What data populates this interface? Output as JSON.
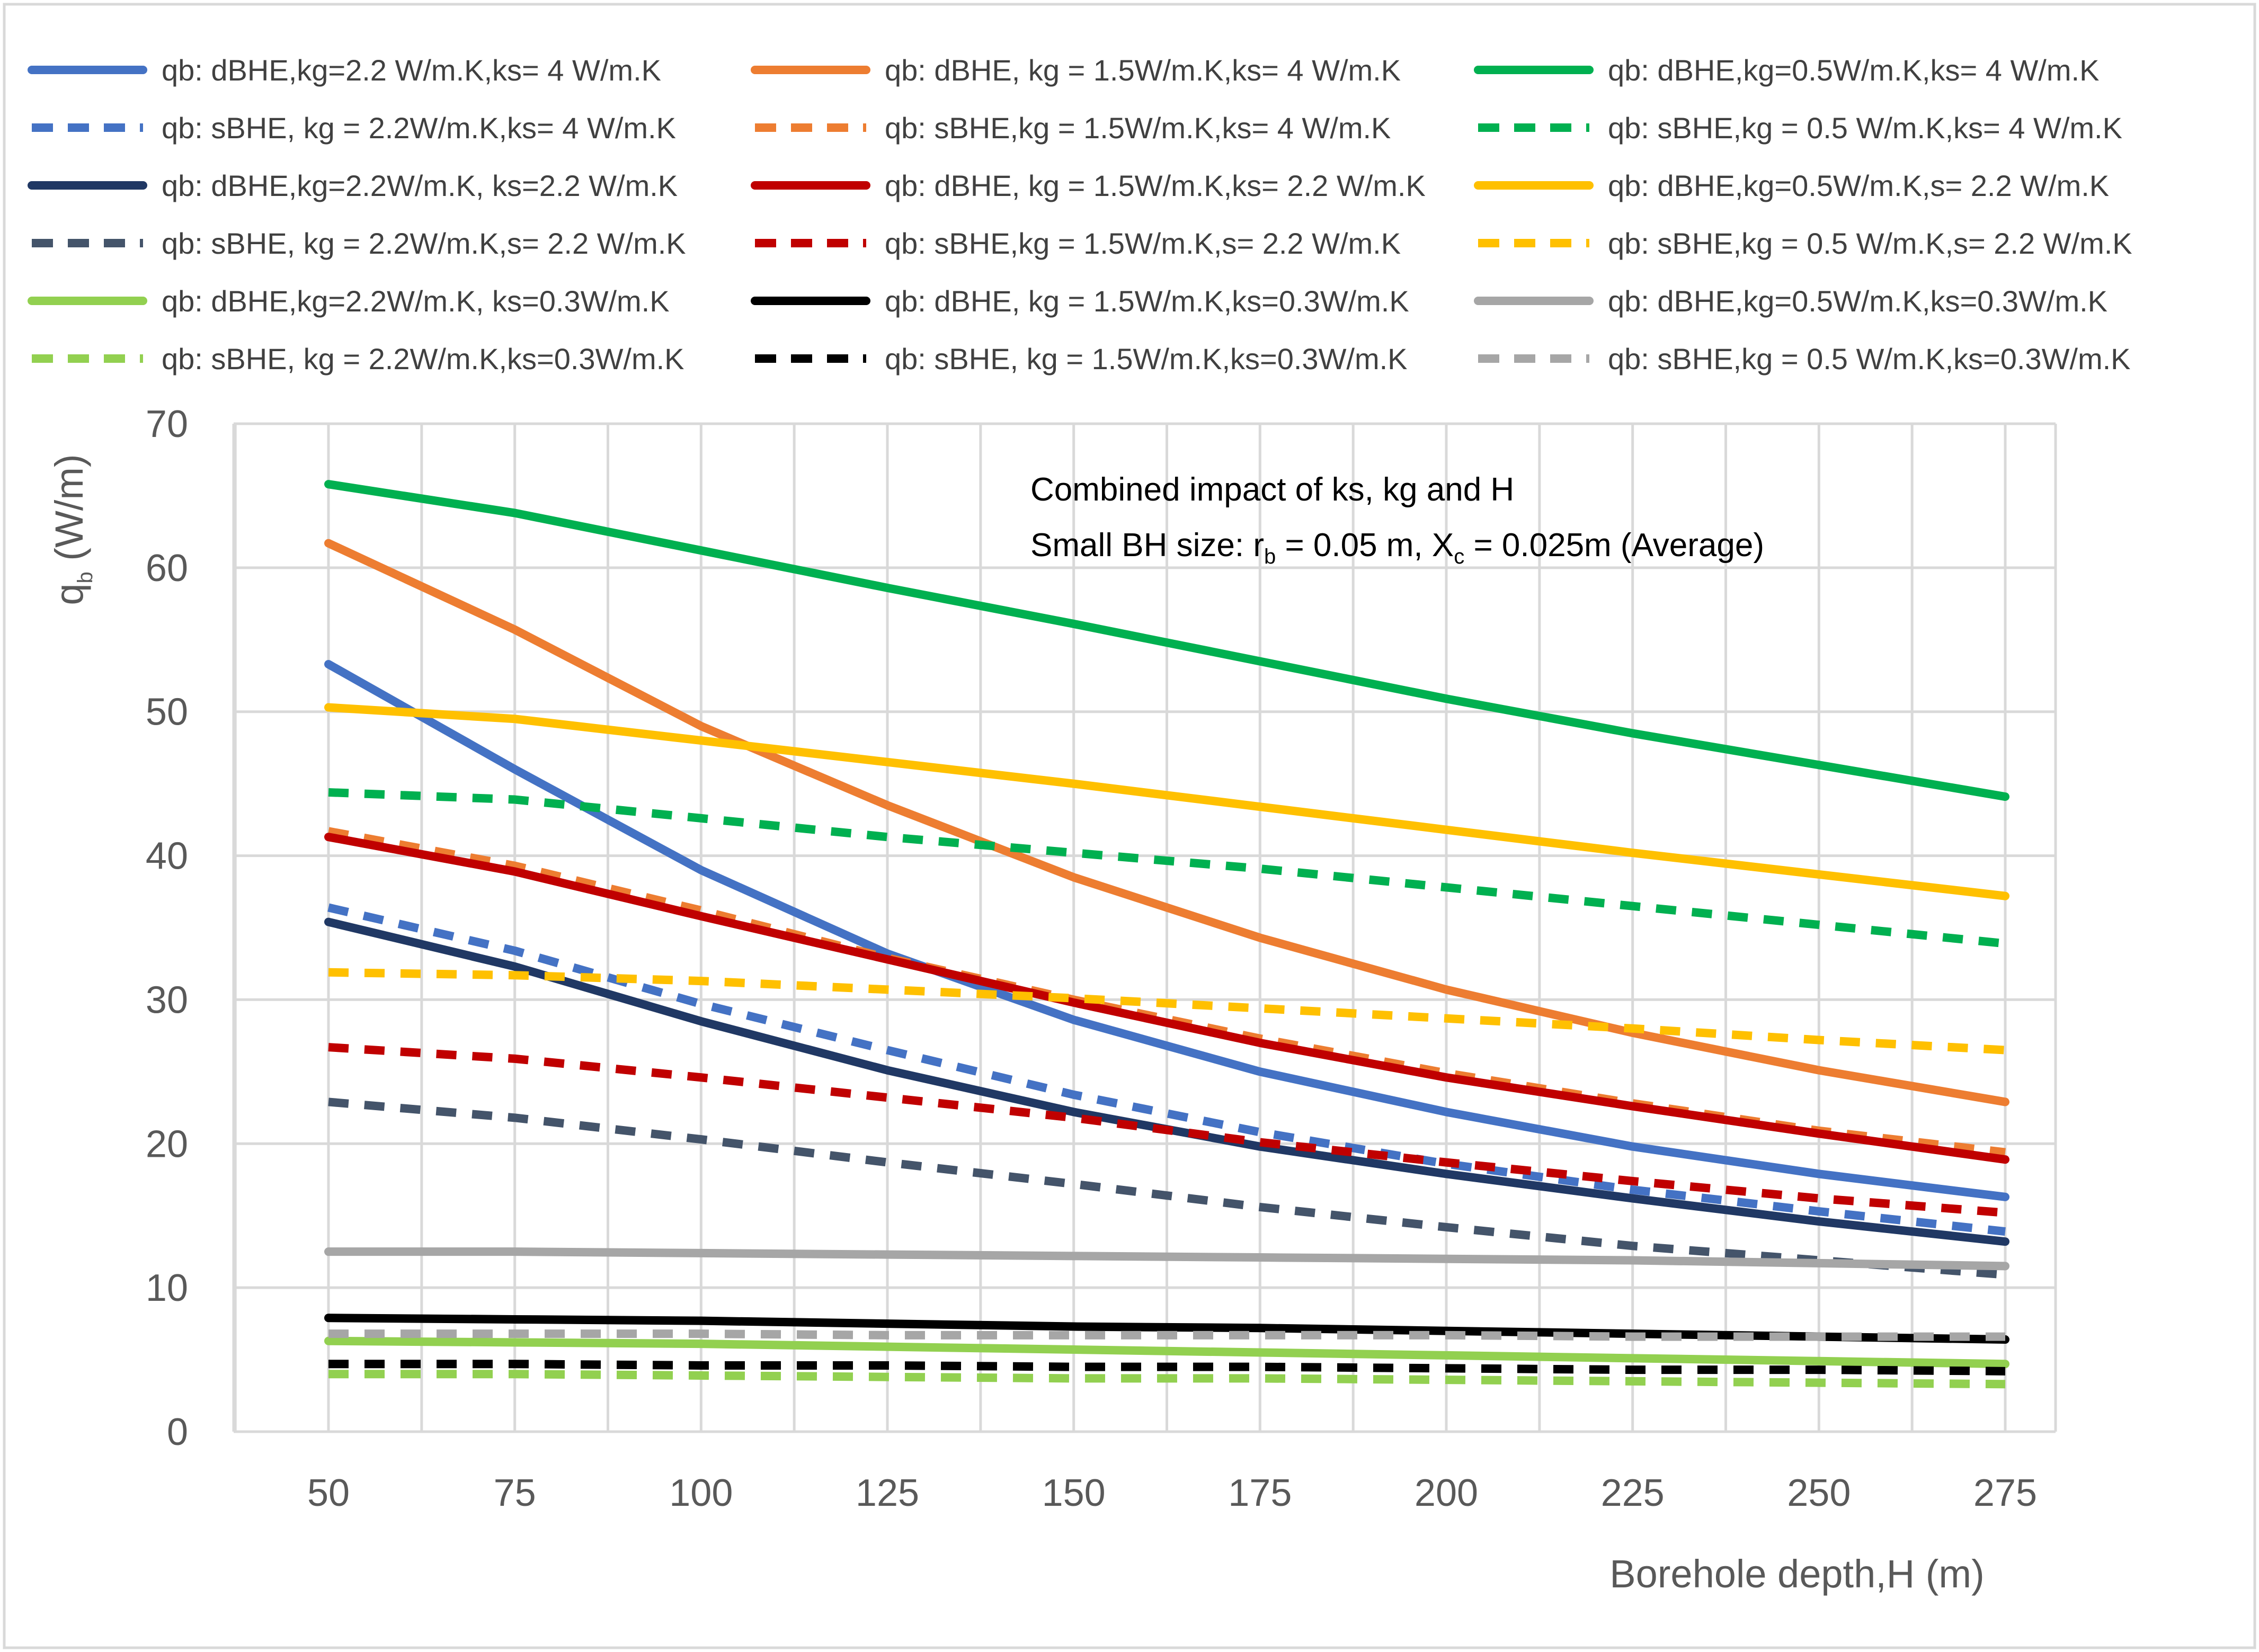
{
  "chart_data": {
    "type": "line",
    "title": "",
    "xlabel": "Borehole depth,H (m)",
    "ylabel": "q",
    "ylabel_sub": "b",
    "ylabel_units": " (W/m)",
    "xlim": [
      50,
      275
    ],
    "ylim": [
      0,
      70
    ],
    "grid": true,
    "legend_position": "top",
    "x": [
      50,
      75,
      100,
      125,
      150,
      175,
      200,
      225,
      250,
      275
    ],
    "x_ticks": [
      "50",
      "75",
      "100",
      "125",
      "150",
      "175",
      "200",
      "225",
      "250",
      "275"
    ],
    "y_ticks": [
      "0",
      "10",
      "20",
      "30",
      "40",
      "50",
      "60",
      "70"
    ],
    "annotation": {
      "line1": "Combined impact of ks, kg and H",
      "line2_a": "Small BH size: r",
      "line2_b_sub": "b",
      "line2_c": " = 0.05 m, X",
      "line2_d_sub": "c",
      "line2_e": " = 0.025m (Average)"
    },
    "series": [
      {
        "name": "qb: dBHE,kg=2.2 W/m.K,ks= 4 W/m.K",
        "color": "#4472c4",
        "style": "solid",
        "values": [
          53.3,
          46,
          39,
          33.2,
          28.6,
          25,
          22.2,
          19.8,
          17.9,
          16.3
        ]
      },
      {
        "name": "qb: dBHE, kg = 1.5W/m.K,ks= 4 W/m.K",
        "color": "#ed7d31",
        "style": "solid",
        "values": [
          61.7,
          55.7,
          49,
          43.5,
          38.5,
          34.3,
          30.7,
          27.7,
          25.1,
          22.9
        ]
      },
      {
        "name": "qb: dBHE,kg=0.5W/m.K,ks= 4 W/m.K",
        "color": "#00b050",
        "style": "solid",
        "values": [
          65.8,
          63.8,
          61.2,
          58.6,
          56.1,
          53.5,
          50.9,
          48.5,
          46.3,
          44.1
        ]
      },
      {
        "name": "qb: sBHE, kg = 2.2W/m.K,ks= 4 W/m.K",
        "color": "#4472c4",
        "style": "dashed",
        "values": [
          36.4,
          33.4,
          29.7,
          26.5,
          23.4,
          20.8,
          18.6,
          16.8,
          15.3,
          13.9
        ]
      },
      {
        "name": "qb: sBHE,kg = 1.5W/m.K,ks= 4 W/m.K",
        "color": "#ed7d31",
        "style": "dashed",
        "values": [
          41.7,
          39.3,
          36.2,
          32.9,
          30,
          27.3,
          24.9,
          22.8,
          20.9,
          19.4
        ]
      },
      {
        "name": "qb: sBHE,kg = 0.5 W/m.K,ks= 4 W/m.K",
        "color": "#00b050",
        "style": "dashed",
        "values": [
          44.4,
          43.9,
          42.6,
          41.3,
          40.2,
          39.1,
          37.8,
          36.5,
          35.2,
          33.9
        ]
      },
      {
        "name": "qb: dBHE,kg=2.2W/m.K, ks=2.2 W/m.K",
        "color": "#203864",
        "style": "solid",
        "values": [
          35.4,
          32.3,
          28.5,
          25.1,
          22.2,
          19.8,
          17.9,
          16.2,
          14.6,
          13.2
        ]
      },
      {
        "name": "qb: dBHE, kg = 1.5W/m.K,ks= 2.2 W/m.K",
        "color": "#c00000",
        "style": "solid",
        "values": [
          41.3,
          38.9,
          35.8,
          32.8,
          29.8,
          27,
          24.6,
          22.6,
          20.7,
          18.9
        ]
      },
      {
        "name": "qb: dBHE,kg=0.5W/m.K,s= 2.2 W/m.K",
        "color": "#ffc000",
        "style": "solid",
        "values": [
          50.3,
          49.5,
          48,
          46.5,
          45,
          43.4,
          41.8,
          40.2,
          38.7,
          37.2
        ]
      },
      {
        "name": "qb: sBHE, kg = 2.2W/m.K,s= 2.2 W/m.K",
        "color": "#44546a",
        "style": "dashed",
        "values": [
          22.9,
          21.8,
          20.3,
          18.7,
          17.2,
          15.6,
          14.2,
          12.9,
          11.9,
          10.9
        ]
      },
      {
        "name": "qb: sBHE,kg = 1.5W/m.K,s= 2.2 W/m.K",
        "color": "#c00000",
        "style": "dashed",
        "values": [
          26.7,
          25.9,
          24.6,
          23.2,
          21.8,
          20.1,
          18.7,
          17.4,
          16.2,
          15.2
        ]
      },
      {
        "name": "qb: sBHE,kg = 0.5 W/m.K,s= 2.2 W/m.K",
        "color": "#ffc000",
        "style": "dashed",
        "values": [
          31.9,
          31.7,
          31.3,
          30.7,
          30.1,
          29.4,
          28.7,
          28,
          27.2,
          26.5
        ]
      },
      {
        "name": "qb: dBHE,kg=2.2W/m.K, ks=0.3W/m.K",
        "color": "#92d050",
        "style": "solid",
        "values": [
          6.3,
          6.2,
          6.1,
          5.9,
          5.7,
          5.5,
          5.3,
          5.1,
          4.9,
          4.7
        ]
      },
      {
        "name": "qb: dBHE, kg = 1.5W/m.K,ks=0.3W/m.K",
        "color": "#000000",
        "style": "solid",
        "values": [
          7.9,
          7.8,
          7.7,
          7.5,
          7.3,
          7.2,
          7,
          6.8,
          6.6,
          6.4
        ]
      },
      {
        "name": "qb: dBHE,kg=0.5W/m.K,ks=0.3W/m.K",
        "color": "#a6a6a6",
        "style": "solid",
        "values": [
          12.5,
          12.5,
          12.4,
          12.3,
          12.2,
          12.1,
          12,
          11.9,
          11.7,
          11.5
        ]
      },
      {
        "name": "qb: sBHE, kg = 2.2W/m.K,ks=0.3W/m.K",
        "color": "#92d050",
        "style": "dashed",
        "values": [
          4,
          4,
          3.9,
          3.8,
          3.7,
          3.7,
          3.6,
          3.5,
          3.4,
          3.3
        ]
      },
      {
        "name": "qb: sBHE, kg = 1.5W/m.K,ks=0.3W/m.K",
        "color": "#000000",
        "style": "dashed",
        "values": [
          4.7,
          4.7,
          4.6,
          4.6,
          4.5,
          4.5,
          4.4,
          4.3,
          4.3,
          4.2
        ]
      },
      {
        "name": "qb: sBHE,kg = 0.5 W/m.K,ks=0.3W/m.K",
        "color": "#a6a6a6",
        "style": "dashed",
        "values": [
          6.8,
          6.8,
          6.8,
          6.7,
          6.7,
          6.7,
          6.7,
          6.6,
          6.6,
          6.6
        ]
      }
    ]
  }
}
